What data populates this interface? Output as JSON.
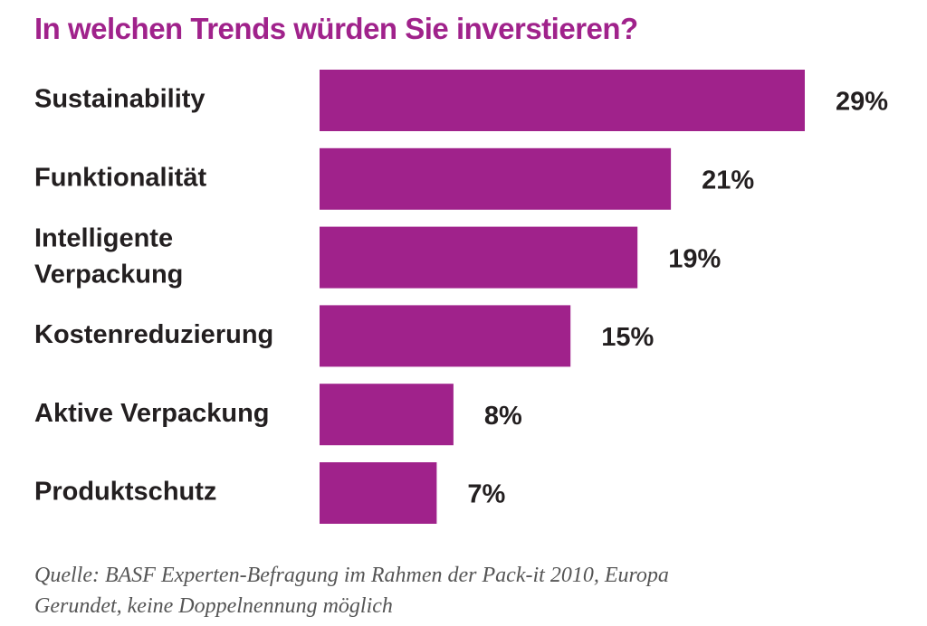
{
  "title": "In welchen Trends würden Sie inverstieren?",
  "accent_color": "#a0228b",
  "text_color": "#231f20",
  "chart_data": {
    "type": "bar",
    "orientation": "horizontal",
    "title": "In welchen Trends würden Sie inverstieren?",
    "categories": [
      [
        "Sustainability"
      ],
      [
        "Funktionalität"
      ],
      [
        "Intelligente",
        "Verpackung"
      ],
      [
        "Kostenreduzierung"
      ],
      [
        "Aktive Verpackung"
      ],
      [
        "Produktschutz"
      ]
    ],
    "values": [
      29,
      21,
      19,
      15,
      8,
      7
    ],
    "value_labels": [
      "29%",
      "21%",
      "19%",
      "15%",
      "8%",
      "7%"
    ],
    "unit": "%",
    "xlim": [
      0,
      29
    ],
    "grid": false,
    "legend": "none"
  },
  "footnotes": [
    "Quelle: BASF Experten-Befragung im Rahmen der Pack-it 2010, Europa",
    "Gerundet, keine Doppelnennung möglich"
  ]
}
